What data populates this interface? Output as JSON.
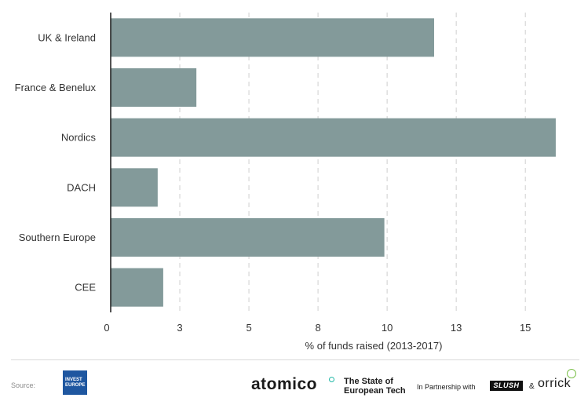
{
  "chart_data": {
    "type": "bar",
    "orientation": "horizontal",
    "categories": [
      "UK & Ireland",
      "France & Benelux",
      "Nordics",
      "DACH",
      "Southern Europe",
      "CEE"
    ],
    "values": [
      11.7,
      3.1,
      16.1,
      1.7,
      9.9,
      1.9
    ],
    "xlabel": "% of funds raised (2013-2017)",
    "ylabel": "",
    "xlim": [
      0,
      16.5
    ],
    "xticks": [
      0,
      2.5,
      5,
      7.5,
      10,
      12.5,
      15
    ],
    "xtick_labels": [
      "0",
      "3",
      "5",
      "8",
      "10",
      "13",
      "15"
    ],
    "grid": "vertical dashed",
    "bar_color": "#839a9a"
  },
  "footer": {
    "source_label": "Source:",
    "source_logo_line1": "INVEST",
    "source_logo_line2": "EUROPE",
    "brand": "atomico",
    "report_line1": "The State of",
    "report_line2": "European Tech",
    "partnership": "In Partnership with",
    "partner1": "SLUSH",
    "amp": "&",
    "partner2": "orrick"
  }
}
